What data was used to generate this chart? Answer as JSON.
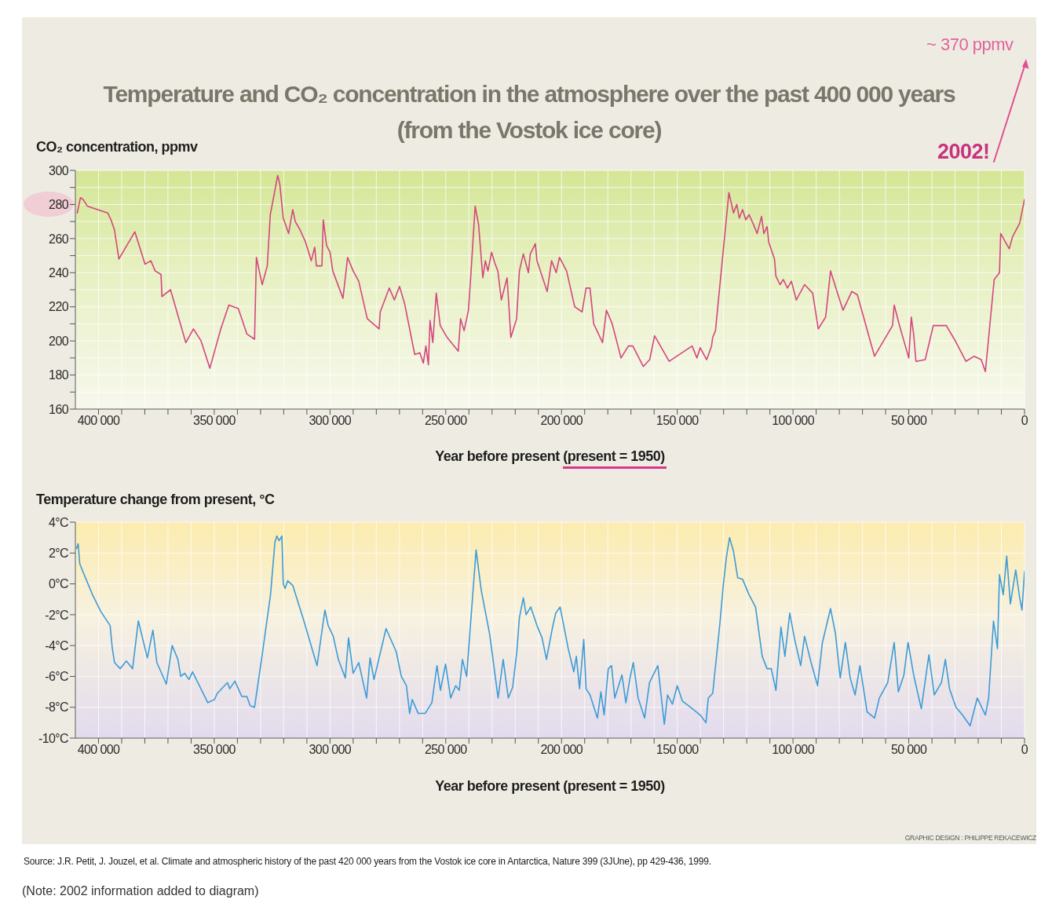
{
  "chart_data": [
    {
      "type": "line",
      "title": "Temperature and CO₂ concentration in the atmosphere over the past 400 000 years",
      "subtitle": "(from the Vostok ice core)",
      "ylabel": "CO₂ concentration, ppmv",
      "xlabel": "Year before present (present = 1950)",
      "x": [
        409200,
        407800,
        406700,
        404800,
        402600,
        396000,
        394600,
        393100,
        391200,
        384300,
        379900,
        377400,
        375500,
        373000,
        372600,
        368900,
        362300,
        359000,
        355700,
        351900,
        347200,
        343700,
        339600,
        335900,
        332600,
        331800,
        329300,
        327100,
        325800,
        322600,
        321700,
        320200,
        317900,
        316100,
        315000,
        312900,
        310600,
        308100,
        306600,
        305900,
        303500,
        302900,
        301500,
        300000,
        298800,
        294400,
        292400,
        290000,
        287600,
        283900,
        278800,
        278300,
        274400,
        272200,
        270000,
        267800,
        263400,
        261200,
        259700,
        258600,
        257500,
        256800,
        255600,
        254100,
        252400,
        249400,
        244600,
        243600,
        242100,
        240200,
        239200,
        237300,
        235800,
        234000,
        232900,
        231800,
        230200,
        228900,
        227500,
        226000,
        223500,
        221900,
        219400,
        218200,
        216500,
        214300,
        213500,
        211300,
        210600,
        206200,
        204300,
        202300,
        200900,
        197800,
        194300,
        191100,
        189400,
        187700,
        186100,
        182300,
        180600,
        178100,
        174300,
        171100,
        169200,
        164700,
        161900,
        159800,
        153500,
        143600,
        141500,
        140100,
        137300,
        135200,
        134700,
        133500,
        127700,
        125700,
        124300,
        123200,
        121800,
        120400,
        119000,
        117300,
        115500,
        113600,
        112600,
        111200,
        110500,
        108000,
        107400,
        105600,
        104200,
        102400,
        100700,
        98600,
        95000,
        91500,
        89100,
        85900,
        83800,
        81000,
        78400,
        74600,
        72200,
        64800,
        57000,
        56300,
        54200,
        50000,
        48900,
        47900,
        46900,
        42900,
        39400,
        33800,
        30300,
        25300,
        21800,
        18700,
        16900,
        13100,
        10800,
        10300,
        6600,
        5200,
        2100,
        0
      ],
      "series": [
        {
          "color": "#d4467e",
          "values": [
            275,
            284,
            283,
            279,
            278,
            275,
            271,
            265,
            248,
            264,
            245,
            247,
            241,
            239,
            226,
            230,
            199,
            207,
            200,
            184,
            207,
            221,
            219,
            204,
            201,
            249,
            233,
            244,
            274,
            297,
            292,
            272,
            263,
            277,
            270,
            265,
            258,
            247,
            255,
            244,
            244,
            271,
            256,
            252,
            241,
            225,
            249,
            241,
            235,
            213,
            207,
            217,
            231,
            224,
            232,
            222,
            192,
            193,
            187,
            197,
            186,
            212,
            199,
            228,
            209,
            202,
            194,
            213,
            206,
            218,
            238,
            279,
            268,
            237,
            247,
            241,
            252,
            246,
            241,
            224,
            237,
            202,
            213,
            241,
            251,
            240,
            251,
            257,
            247,
            229,
            247,
            240,
            249,
            241,
            220,
            217,
            231,
            231,
            210,
            199,
            218,
            210,
            190,
            197,
            197,
            185,
            189,
            203,
            188,
            197,
            190,
            196,
            189,
            197,
            202,
            206,
            287,
            275,
            280,
            272,
            277,
            271,
            274,
            269,
            263,
            273,
            263,
            267,
            258,
            248,
            238,
            233,
            236,
            231,
            235,
            224,
            233,
            228,
            207,
            214,
            241,
            229,
            218,
            229,
            227,
            191,
            209,
            221,
            210,
            190,
            214,
            204,
            188,
            189,
            209,
            209,
            201,
            188,
            191,
            189,
            182,
            236,
            240,
            263,
            254,
            261,
            269,
            283
          ]
        }
      ],
      "xlim": [
        410000,
        0
      ],
      "xticks": [
        {
          "value": 400000,
          "label": "400 000"
        },
        {
          "value": 390000,
          "label": null
        },
        {
          "value": 380000,
          "label": null
        },
        {
          "value": 370000,
          "label": null
        },
        {
          "value": 360000,
          "label": null
        },
        {
          "value": 350000,
          "label": "350 000"
        },
        {
          "value": 340000,
          "label": null
        },
        {
          "value": 330000,
          "label": null
        },
        {
          "value": 320000,
          "label": null
        },
        {
          "value": 310000,
          "label": null
        },
        {
          "value": 300000,
          "label": "300 000"
        },
        {
          "value": 290000,
          "label": null
        },
        {
          "value": 280000,
          "label": null
        },
        {
          "value": 270000,
          "label": null
        },
        {
          "value": 260000,
          "label": null
        },
        {
          "value": 250000,
          "label": "250 000"
        },
        {
          "value": 240000,
          "label": null
        },
        {
          "value": 230000,
          "label": null
        },
        {
          "value": 220000,
          "label": null
        },
        {
          "value": 210000,
          "label": null
        },
        {
          "value": 200000,
          "label": "200 000"
        },
        {
          "value": 190000,
          "label": null
        },
        {
          "value": 180000,
          "label": null
        },
        {
          "value": 170000,
          "label": null
        },
        {
          "value": 160000,
          "label": null
        },
        {
          "value": 150000,
          "label": "150 000"
        },
        {
          "value": 140000,
          "label": null
        },
        {
          "value": 130000,
          "label": null
        },
        {
          "value": 120000,
          "label": null
        },
        {
          "value": 110000,
          "label": null
        },
        {
          "value": 100000,
          "label": "100 000"
        },
        {
          "value": 90000,
          "label": null
        },
        {
          "value": 80000,
          "label": null
        },
        {
          "value": 70000,
          "label": null
        },
        {
          "value": 60000,
          "label": null
        },
        {
          "value": 50000,
          "label": "50 000"
        },
        {
          "value": 40000,
          "label": null
        },
        {
          "value": 30000,
          "label": null
        },
        {
          "value": 20000,
          "label": null
        },
        {
          "value": 10000,
          "label": null
        },
        0
      ],
      "ylim": [
        160,
        300
      ],
      "yticks": [
        160,
        {
          "value": 170,
          "label": null
        },
        180,
        {
          "value": 190,
          "label": null
        },
        200,
        {
          "value": 210,
          "label": null
        },
        220,
        {
          "value": 230,
          "label": null
        },
        240,
        {
          "value": 250,
          "label": null
        },
        260,
        {
          "value": 270,
          "label": null
        },
        280,
        {
          "value": 290,
          "label": null
        },
        300
      ],
      "grid": true,
      "annotations": [
        "~ 370 ppmv",
        "2002!"
      ]
    },
    {
      "type": "line",
      "ylabel": "Temperature change from present, °C",
      "xlabel": "Year before present (present = 1950)",
      "x": [
        409500,
        408800,
        408100,
        407300,
        402600,
        399000,
        395000,
        394100,
        393100,
        390600,
        388000,
        385300,
        382800,
        378900,
        376500,
        374800,
        370700,
        368200,
        365700,
        364500,
        362800,
        360900,
        359400,
        352800,
        349900,
        348700,
        344300,
        343300,
        341100,
        338100,
        335900,
        334500,
        332600,
        329300,
        325700,
        323800,
        323000,
        322000,
        320800,
        320200,
        319400,
        318300,
        316100,
        311700,
        305600,
        302200,
        300800,
        298600,
        296400,
        293400,
        292000,
        290000,
        287600,
        284200,
        282700,
        281000,
        275800,
        271400,
        269200,
        267000,
        265600,
        264500,
        261900,
        258900,
        256000,
        253800,
        252300,
        250100,
        247900,
        245700,
        244200,
        242800,
        241000,
        236900,
        234700,
        231000,
        227400,
        225200,
        223000,
        221100,
        219300,
        218200,
        216500,
        215300,
        213300,
        210600,
        208400,
        206500,
        204000,
        202500,
        200600,
        197100,
        194700,
        193600,
        192200,
        190400,
        189400,
        187700,
        184500,
        183000,
        181600,
        179800,
        178400,
        177000,
        173900,
        172200,
        170400,
        169000,
        166900,
        164100,
        162000,
        158400,
        155600,
        154200,
        152100,
        150000,
        147800,
        144300,
        140100,
        137600,
        136600,
        134700,
        131600,
        130200,
        128800,
        127400,
        125700,
        123900,
        121800,
        119000,
        116200,
        113300,
        111200,
        109400,
        107400,
        105200,
        103500,
        101400,
        99300,
        96700,
        95000,
        92200,
        89400,
        87300,
        83800,
        81700,
        79600,
        77400,
        75300,
        73200,
        71100,
        68000,
        64800,
        62700,
        59100,
        56300,
        54500,
        52100,
        50300,
        47900,
        44600,
        41300,
        39000,
        35900,
        34200,
        32400,
        29600,
        26800,
        23500,
        20400,
        16900,
        15500,
        13400,
        11700,
        10800,
        9200,
        7700,
        6100,
        3800,
        2100,
        1100,
        0
      ],
      "series": [
        {
          "color": "#3d9bd6",
          "values": [
            2.3,
            2.6,
            1.3,
            1.0,
            -0.7,
            -1.8,
            -2.7,
            -4.1,
            -5.1,
            -5.5,
            -5.0,
            -5.5,
            -2.4,
            -4.8,
            -3.0,
            -5.1,
            -6.5,
            -4.0,
            -4.9,
            -6.0,
            -5.8,
            -6.2,
            -5.7,
            -7.7,
            -7.5,
            -7.1,
            -6.4,
            -6.8,
            -6.3,
            -7.3,
            -7.3,
            -7.9,
            -8.0,
            -4.6,
            -0.7,
            2.7,
            3.1,
            2.8,
            3.1,
            0.0,
            -0.3,
            0.2,
            -0.1,
            -2.2,
            -5.3,
            -1.7,
            -2.7,
            -3.4,
            -4.9,
            -6.1,
            -3.5,
            -5.8,
            -5.1,
            -7.4,
            -4.8,
            -6.2,
            -2.9,
            -4.4,
            -6.0,
            -6.6,
            -8.4,
            -7.5,
            -8.4,
            -8.4,
            -7.7,
            -5.3,
            -6.9,
            -5.2,
            -7.4,
            -6.6,
            -6.9,
            -4.9,
            -6.0,
            2.2,
            -0.4,
            -3.3,
            -7.4,
            -4.9,
            -7.4,
            -6.7,
            -4.4,
            -2.2,
            -0.9,
            -2.0,
            -1.5,
            -2.7,
            -3.5,
            -4.9,
            -2.9,
            -1.9,
            -1.5,
            -4.2,
            -5.7,
            -4.7,
            -6.8,
            -3.6,
            -6.8,
            -7.2,
            -8.7,
            -7.0,
            -8.5,
            -5.5,
            -5.3,
            -7.4,
            -5.9,
            -7.7,
            -6.1,
            -5.1,
            -7.4,
            -8.7,
            -6.4,
            -5.3,
            -9.1,
            -7.2,
            -7.8,
            -6.6,
            -7.6,
            -8.0,
            -8.5,
            -9.0,
            -7.4,
            -7.1,
            -2.6,
            -0.2,
            1.7,
            3.0,
            2.1,
            0.4,
            0.3,
            -0.7,
            -1.5,
            -4.7,
            -5.5,
            -5.5,
            -6.9,
            -2.8,
            -4.7,
            -1.9,
            -3.6,
            -5.3,
            -3.4,
            -5.1,
            -6.6,
            -3.8,
            -1.6,
            -3.2,
            -6.1,
            -3.8,
            -6.1,
            -7.2,
            -5.3,
            -8.3,
            -8.7,
            -7.4,
            -6.4,
            -3.8,
            -7.0,
            -5.9,
            -3.8,
            -5.9,
            -8.1,
            -4.6,
            -7.2,
            -6.4,
            -4.9,
            -6.8,
            -8.0,
            -8.5,
            -9.2,
            -7.4,
            -8.5,
            -7.4,
            -2.4,
            -4.2,
            0.6,
            -0.7,
            1.8,
            -1.3,
            0.9,
            -0.9,
            -1.7,
            0.8
          ]
        }
      ],
      "xlim": [
        410000,
        0
      ],
      "xticks": [
        {
          "value": 400000,
          "label": "400 000"
        },
        {
          "value": 390000,
          "label": null
        },
        {
          "value": 380000,
          "label": null
        },
        {
          "value": 370000,
          "label": null
        },
        {
          "value": 360000,
          "label": null
        },
        {
          "value": 350000,
          "label": "350 000"
        },
        {
          "value": 340000,
          "label": null
        },
        {
          "value": 330000,
          "label": null
        },
        {
          "value": 320000,
          "label": null
        },
        {
          "value": 310000,
          "label": null
        },
        {
          "value": 300000,
          "label": "300 000"
        },
        {
          "value": 290000,
          "label": null
        },
        {
          "value": 280000,
          "label": null
        },
        {
          "value": 270000,
          "label": null
        },
        {
          "value": 260000,
          "label": null
        },
        {
          "value": 250000,
          "label": "250 000"
        },
        {
          "value": 240000,
          "label": null
        },
        {
          "value": 230000,
          "label": null
        },
        {
          "value": 220000,
          "label": null
        },
        {
          "value": 210000,
          "label": null
        },
        {
          "value": 200000,
          "label": "200 000"
        },
        {
          "value": 190000,
          "label": null
        },
        {
          "value": 180000,
          "label": null
        },
        {
          "value": 170000,
          "label": null
        },
        {
          "value": 160000,
          "label": null
        },
        {
          "value": 150000,
          "label": "150 000"
        },
        {
          "value": 140000,
          "label": null
        },
        {
          "value": 130000,
          "label": null
        },
        {
          "value": 120000,
          "label": null
        },
        {
          "value": 110000,
          "label": null
        },
        {
          "value": 100000,
          "label": "100 000"
        },
        {
          "value": 90000,
          "label": null
        },
        {
          "value": 80000,
          "label": null
        },
        {
          "value": 70000,
          "label": null
        },
        {
          "value": 60000,
          "label": null
        },
        {
          "value": 50000,
          "label": "50 000"
        },
        {
          "value": 40000,
          "label": null
        },
        {
          "value": 30000,
          "label": null
        },
        {
          "value": 20000,
          "label": null
        },
        {
          "value": 10000,
          "label": null
        },
        0
      ],
      "ylim": [
        -10,
        4
      ],
      "yticks": [
        {
          "value": -10,
          "label": "-10°C"
        },
        {
          "value": -8,
          "label": "-8°C"
        },
        {
          "value": -6,
          "label": "-6°C"
        },
        {
          "value": -4,
          "label": "-4°C"
        },
        {
          "value": -2,
          "label": "-2°C"
        },
        {
          "value": 0,
          "label": "0°C"
        },
        {
          "value": 2,
          "label": "2°C"
        },
        {
          "value": 4,
          "label": "4°C"
        }
      ],
      "grid": true,
      "annotations": [
        "GRAPHIC DESIGN : PHILIPPE REKACEWICZ",
        "Source: J.R. Petit, J. Jouzel, et al. Climate and atmospheric history of the past 420 000 years from the Vostok ice core in Antarctica, Nature 399 (3JUne), pp 429-436, 1999.",
        "(Note: 2002 information added to diagram)"
      ]
    }
  ]
}
